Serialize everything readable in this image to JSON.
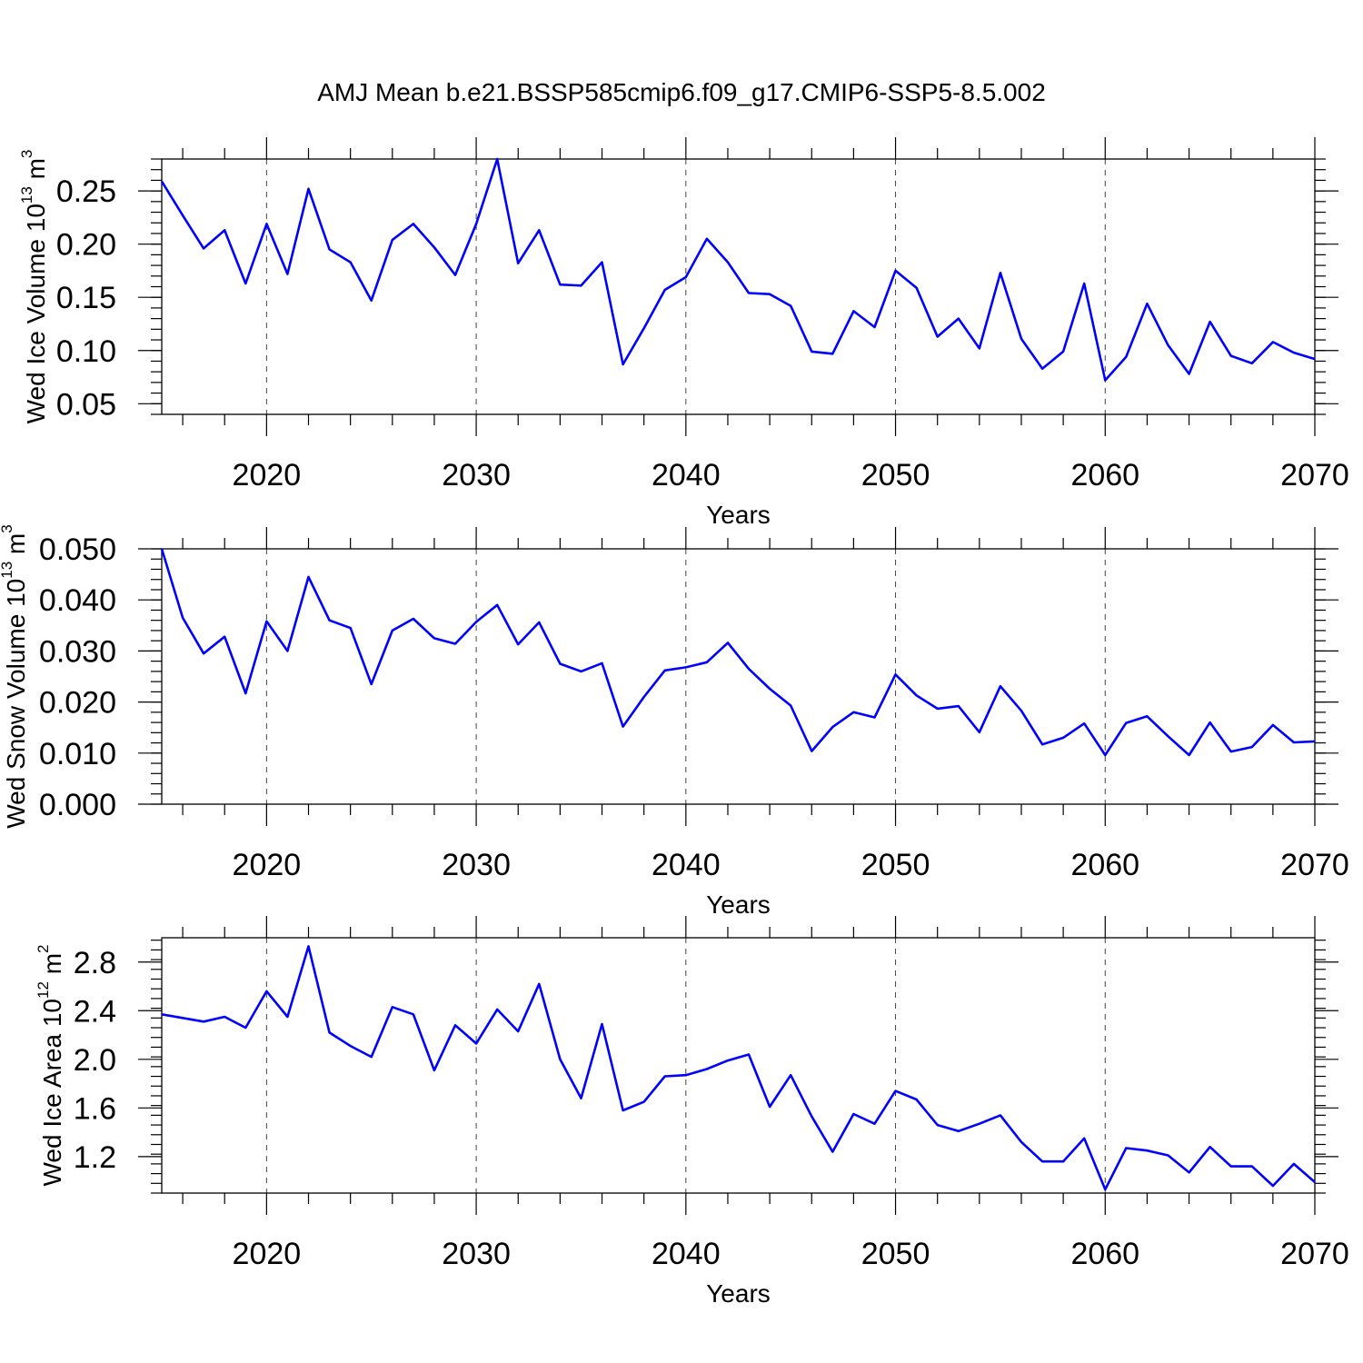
{
  "chart_data": [
    {
      "type": "line",
      "title": "AMJ Mean b.e21.BSSP585cmip6.f09_g17.CMIP6-SSP5-8.5.002",
      "xlabel": "Years",
      "ylabel": "Wed Ice Volume 10",
      "ylabel_exp": "13",
      "ylabel_unit": " m",
      "ylabel_unit_exp": "3",
      "xlim": [
        2015,
        2070
      ],
      "ylim": [
        0.04,
        0.28
      ],
      "xticks": [
        "2020",
        "2030",
        "2040",
        "2050",
        "2060",
        "2070"
      ],
      "yticks": [
        "0.05",
        "0.10",
        "0.15",
        "0.20",
        "0.25"
      ],
      "grid": "vertical dashed at major x ticks",
      "color": "#0000ff",
      "x": [
        2015,
        2016,
        2017,
        2018,
        2019,
        2020,
        2021,
        2022,
        2023,
        2024,
        2025,
        2026,
        2027,
        2028,
        2029,
        2030,
        2031,
        2032,
        2033,
        2034,
        2035,
        2036,
        2037,
        2038,
        2039,
        2040,
        2041,
        2042,
        2043,
        2044,
        2045,
        2046,
        2047,
        2048,
        2049,
        2050,
        2051,
        2052,
        2053,
        2054,
        2055,
        2056,
        2057,
        2058,
        2059,
        2060,
        2061,
        2062,
        2063,
        2064,
        2065,
        2066,
        2067,
        2068,
        2069,
        2070
      ],
      "values": [
        0.259,
        0.227,
        0.196,
        0.213,
        0.163,
        0.219,
        0.172,
        0.252,
        0.195,
        0.183,
        0.147,
        0.204,
        0.219,
        0.197,
        0.171,
        0.219,
        0.28,
        0.182,
        0.213,
        0.162,
        0.161,
        0.183,
        0.087,
        0.121,
        0.157,
        0.169,
        0.205,
        0.183,
        0.154,
        0.153,
        0.142,
        0.099,
        0.097,
        0.137,
        0.122,
        0.175,
        0.159,
        0.113,
        0.13,
        0.102,
        0.173,
        0.111,
        0.083,
        0.099,
        0.163,
        0.072,
        0.094,
        0.144,
        0.105,
        0.078,
        0.127,
        0.095,
        0.088,
        0.108,
        0.098,
        0.092
      ]
    },
    {
      "type": "line",
      "xlabel": "Years",
      "ylabel": "Wed Snow Volume 10",
      "ylabel_exp": "13",
      "ylabel_unit": " m",
      "ylabel_unit_exp": "3",
      "xlim": [
        2015,
        2070
      ],
      "ylim": [
        0.0,
        0.05
      ],
      "xticks": [
        "2020",
        "2030",
        "2040",
        "2050",
        "2060",
        "2070"
      ],
      "yticks": [
        "0.000",
        "0.010",
        "0.020",
        "0.030",
        "0.040",
        "0.050"
      ],
      "grid": "vertical dashed at major x ticks",
      "color": "#0000ff",
      "x": [
        2015,
        2016,
        2017,
        2018,
        2019,
        2020,
        2021,
        2022,
        2023,
        2024,
        2025,
        2026,
        2027,
        2028,
        2029,
        2030,
        2031,
        2032,
        2033,
        2034,
        2035,
        2036,
        2037,
        2038,
        2039,
        2040,
        2041,
        2042,
        2043,
        2044,
        2045,
        2046,
        2047,
        2048,
        2049,
        2050,
        2051,
        2052,
        2053,
        2054,
        2055,
        2056,
        2057,
        2058,
        2059,
        2060,
        2061,
        2062,
        2063,
        2064,
        2065,
        2066,
        2067,
        2068,
        2069,
        2070
      ],
      "values": [
        0.05,
        0.0365,
        0.0295,
        0.0328,
        0.0217,
        0.0358,
        0.03,
        0.0445,
        0.036,
        0.0345,
        0.0235,
        0.034,
        0.0363,
        0.0325,
        0.0314,
        0.0357,
        0.039,
        0.0313,
        0.0356,
        0.0275,
        0.026,
        0.0276,
        0.0152,
        0.021,
        0.0262,
        0.0268,
        0.0278,
        0.0316,
        0.0265,
        0.0226,
        0.0193,
        0.0104,
        0.0151,
        0.018,
        0.017,
        0.0254,
        0.0213,
        0.0187,
        0.0192,
        0.0141,
        0.0231,
        0.0183,
        0.0117,
        0.013,
        0.0158,
        0.0096,
        0.0159,
        0.0172,
        0.0133,
        0.0096,
        0.016,
        0.0103,
        0.0112,
        0.0155,
        0.0121,
        0.0123
      ]
    },
    {
      "type": "line",
      "xlabel": "Years",
      "ylabel": "Wed Ice Area 10",
      "ylabel_exp": "12",
      "ylabel_unit": " m",
      "ylabel_unit_exp": "2",
      "xlim": [
        2015,
        2070
      ],
      "ylim": [
        0.9,
        3.0
      ],
      "xticks": [
        "2020",
        "2030",
        "2040",
        "2050",
        "2060",
        "2070"
      ],
      "yticks": [
        "1.2",
        "1.6",
        "2.0",
        "2.4",
        "2.8"
      ],
      "grid": "vertical dashed at major x ticks",
      "color": "#0000ff",
      "x": [
        2015,
        2016,
        2017,
        2018,
        2019,
        2020,
        2021,
        2022,
        2023,
        2024,
        2025,
        2026,
        2027,
        2028,
        2029,
        2030,
        2031,
        2032,
        2033,
        2034,
        2035,
        2036,
        2037,
        2038,
        2039,
        2040,
        2041,
        2042,
        2043,
        2044,
        2045,
        2046,
        2047,
        2048,
        2049,
        2050,
        2051,
        2052,
        2053,
        2054,
        2055,
        2056,
        2057,
        2058,
        2059,
        2060,
        2061,
        2062,
        2063,
        2064,
        2065,
        2066,
        2067,
        2068,
        2069,
        2070
      ],
      "values": [
        2.37,
        2.34,
        2.31,
        2.35,
        2.26,
        2.56,
        2.35,
        2.93,
        2.22,
        2.11,
        2.02,
        2.43,
        2.37,
        1.91,
        2.28,
        2.13,
        2.41,
        2.23,
        2.62,
        2.0,
        1.68,
        2.29,
        1.58,
        1.65,
        1.86,
        1.87,
        1.92,
        1.99,
        2.04,
        1.61,
        1.87,
        1.53,
        1.24,
        1.55,
        1.47,
        1.74,
        1.67,
        1.46,
        1.41,
        1.47,
        1.54,
        1.32,
        1.16,
        1.16,
        1.35,
        0.93,
        1.27,
        1.25,
        1.21,
        1.07,
        1.28,
        1.12,
        1.12,
        0.96,
        1.14,
        0.99
      ]
    }
  ]
}
